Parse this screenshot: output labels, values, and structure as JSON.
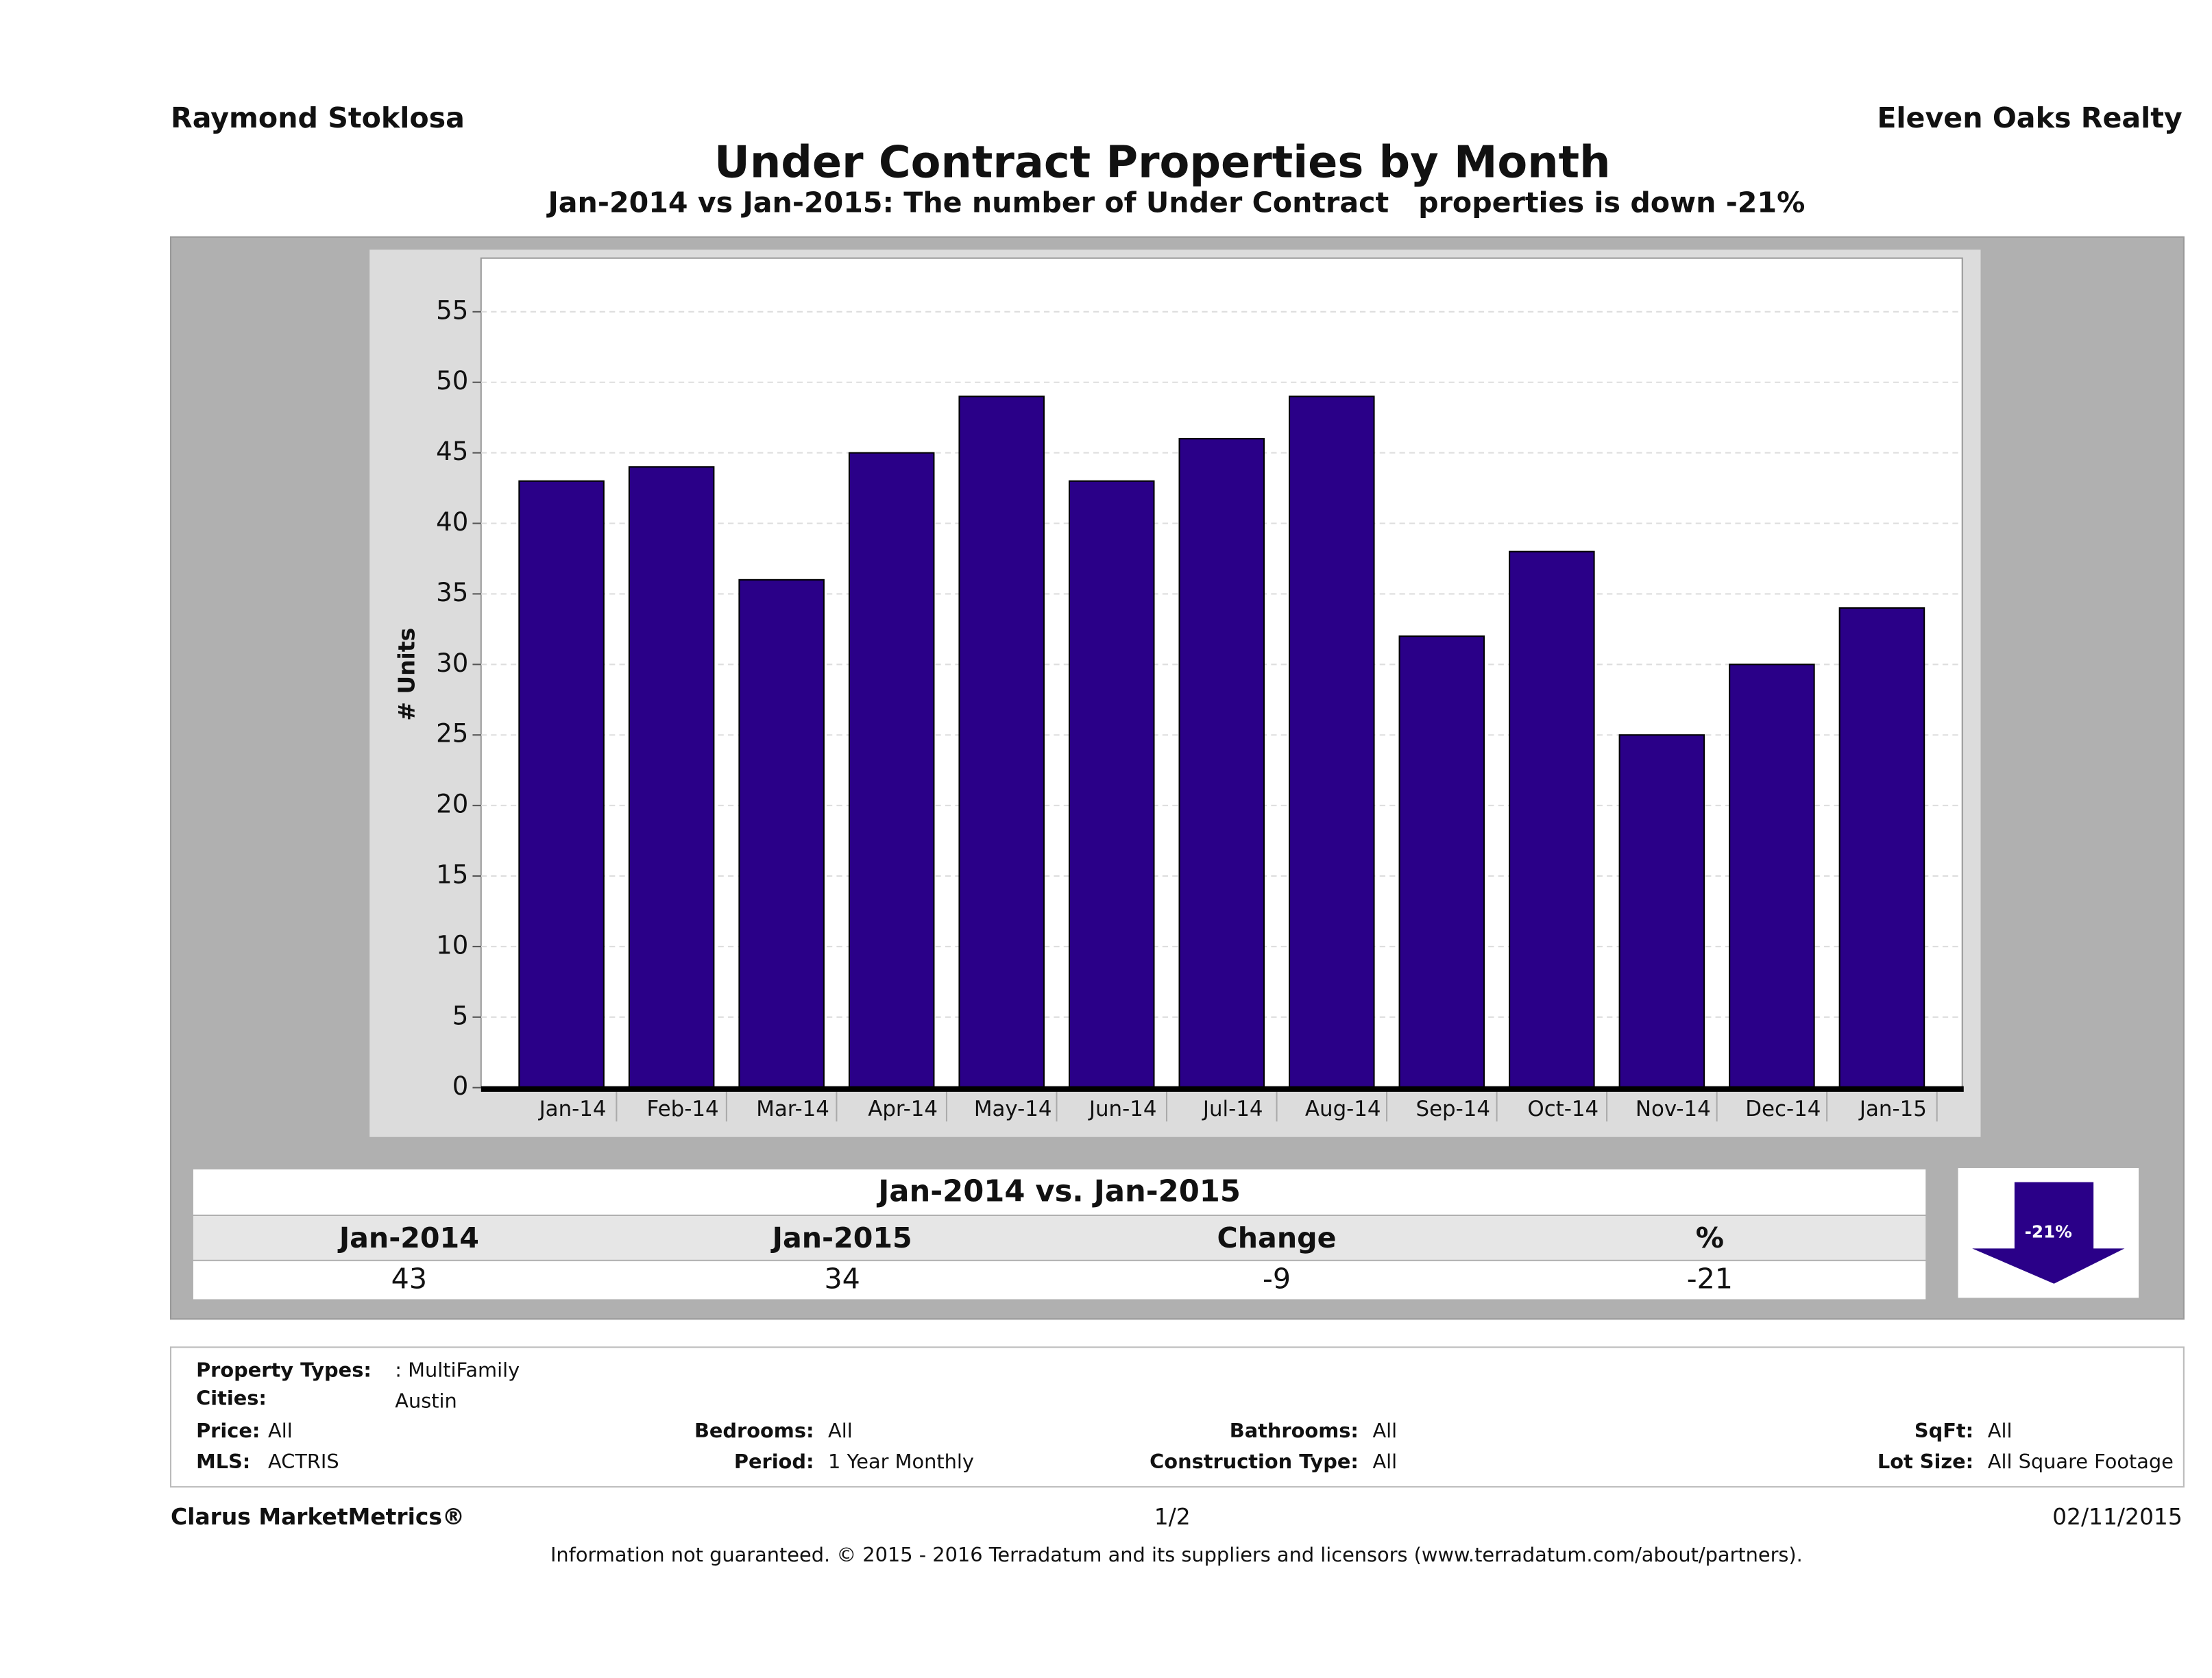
{
  "header": {
    "agent": "Raymond Stoklosa",
    "company": "Eleven Oaks Realty"
  },
  "chart_data": {
    "type": "bar",
    "title": "Under Contract Properties by Month",
    "subtitle": "Jan-2014 vs Jan-2015: The number of Under Contract   properties is down -21%",
    "y_label": "# Units",
    "categories": [
      "Jan-14",
      "Feb-14",
      "Mar-14",
      "Apr-14",
      "May-14",
      "Jun-14",
      "Jul-14",
      "Aug-14",
      "Sep-14",
      "Oct-14",
      "Nov-14",
      "Dec-14",
      "Jan-15"
    ],
    "values": [
      43,
      44,
      36,
      45,
      49,
      43,
      46,
      49,
      32,
      38,
      25,
      30,
      34
    ],
    "color": "#2a0088",
    "ylim": [
      0,
      58.8
    ],
    "yticks": [
      0,
      5,
      10,
      15,
      20,
      25,
      30,
      35,
      40,
      45,
      50,
      55
    ],
    "grid": true
  },
  "summary": {
    "title": "Jan-2014 vs. Jan-2015",
    "columns": [
      "Jan-2014",
      "Jan-2015",
      "Change",
      "%"
    ],
    "values": [
      43,
      34,
      -9,
      -21
    ],
    "badge": "-21%"
  },
  "filters": {
    "property_types_label": "Property Types:",
    "property_types": ": MultiFamily",
    "cities_label": "Cities:",
    "cities": "Austin",
    "price_label": "Price:",
    "price": "All",
    "bedrooms_label": "Bedrooms:",
    "bedrooms": "All",
    "bathrooms_label": "Bathrooms:",
    "bathrooms": "All",
    "sqft_label": "SqFt:",
    "sqft": "All",
    "mls_label": "MLS:",
    "mls": "ACTRIS",
    "period_label": "Period:",
    "period": "1 Year Monthly",
    "construction_label": "Construction Type:",
    "construction": "All",
    "lot_label": "Lot Size:",
    "lot": "All Square Footage"
  },
  "footer": {
    "brand": "Clarus MarketMetrics®",
    "page": "1/2",
    "date": "02/11/2015",
    "disclaimer": "Information not guaranteed. © 2015 - 2016 Terradatum and its suppliers and licensors (www.terradatum.com/about/partners)."
  }
}
